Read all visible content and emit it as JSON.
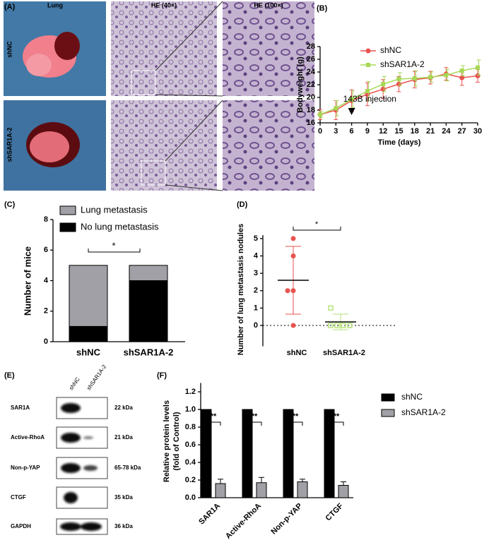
{
  "panels": {
    "a": "(A)",
    "b": "(B)",
    "c": "(C)",
    "d": "(D)",
    "e": "(E)",
    "f": "(F)"
  },
  "panel_a": {
    "column_headers": [
      "Lung",
      "HE (40×)",
      "HE (100×)"
    ],
    "row_labels": [
      "shNC",
      "shSAR1A-2"
    ]
  },
  "panel_e": {
    "column_labels": [
      "shNC",
      "shSAR1A-2"
    ],
    "rows": [
      {
        "protein": "SAR1A",
        "size": "22 kDa"
      },
      {
        "protein": "Active-RhoA",
        "size": "21 kDa"
      },
      {
        "protein": "Non-p-YAP",
        "size": "65-78 kDa"
      },
      {
        "protein": "CTGF",
        "size": "35 kDa"
      },
      {
        "protein": "GAPDH",
        "size": "36 kDa"
      }
    ]
  },
  "chart_data": [
    {
      "type": "line",
      "x": [
        0,
        3,
        6,
        9,
        12,
        15,
        18,
        21,
        24,
        27,
        30
      ],
      "xlim": [
        0,
        30
      ],
      "xticks": [
        0,
        3,
        6,
        9,
        12,
        15,
        18,
        21,
        24,
        27,
        30
      ],
      "ylim": [
        16,
        28
      ],
      "yticks": [
        16,
        18,
        20,
        22,
        24,
        26,
        28
      ],
      "xlabel": "Time (days)",
      "ylabel": "Bodyweight (g)",
      "annotation": {
        "text": "143B injection",
        "x": 6
      },
      "legend_position": "upper left",
      "series": [
        {
          "name": "shNC",
          "color": "#e8534f",
          "values": [
            17.3,
            18.0,
            19.5,
            20.5,
            21.3,
            22.1,
            22.8,
            23.1,
            23.7,
            23.1,
            23.4
          ],
          "errors": [
            0.8,
            1.5,
            1.7,
            1.8,
            1.5,
            1.2,
            1.3,
            1.0,
            1.0,
            1.2,
            1.0
          ]
        },
        {
          "name": "shSAR1A-2",
          "color": "#a6d854",
          "values": [
            17.3,
            18.3,
            19.7,
            21.0,
            22.1,
            22.9,
            23.0,
            23.2,
            23.5,
            24.2,
            24.7
          ],
          "errors": [
            0.5,
            1.2,
            1.3,
            1.5,
            1.2,
            1.0,
            1.2,
            0.8,
            0.9,
            0.8,
            1.2
          ]
        }
      ]
    },
    {
      "type": "stacked_bar",
      "categories": [
        "shNC",
        "shSAR1A-2"
      ],
      "ylim": [
        0,
        8
      ],
      "yticks": [
        0,
        2,
        4,
        6,
        8
      ],
      "ylabel": "Number of mice",
      "significance": "*",
      "series": [
        {
          "name": "No lung metastasis",
          "color": "#000000",
          "values": [
            1,
            4
          ]
        },
        {
          "name": "Lung metastasis",
          "color": "#a0a0a6",
          "values": [
            4,
            1
          ]
        }
      ]
    },
    {
      "type": "dot_plot",
      "categories": [
        "shNC",
        "shSAR1A-2"
      ],
      "ylim": [
        -1.2,
        5.2
      ],
      "yticks": [
        0,
        1,
        2,
        3,
        4,
        5
      ],
      "ylabel": "Number of lung metastasis nodules",
      "reference_line": 0,
      "significance": "*",
      "groups": [
        {
          "color": "#e8534f",
          "values": [
            5,
            4,
            2,
            2,
            0
          ],
          "mean": 2.6,
          "sd": 1.95
        },
        {
          "color": "#b7e27a",
          "values": [
            1,
            0,
            0,
            0,
            0
          ],
          "mean": 0.2,
          "sd": 0.45
        }
      ]
    },
    {
      "type": "grouped_bar",
      "categories": [
        "SAR1A",
        "Active-RhoA",
        "Non-p-YAP",
        "CTGF"
      ],
      "ylim": [
        0,
        1.3
      ],
      "yticks": [
        {
          "value": 0,
          "label": "0.0"
        },
        0.2,
        0.4,
        0.6,
        0.8,
        {
          "value": 1,
          "label": "1.0"
        },
        1.2
      ],
      "ylabel": [
        "Relative protein levels",
        "(fold of Control)"
      ],
      "significance": [
        "**",
        "**",
        "**",
        "**"
      ],
      "series": [
        {
          "name": "shNC",
          "color": "#000000",
          "values": [
            1,
            1,
            1,
            1
          ]
        },
        {
          "name": "shSAR1A-2",
          "color": "#a0a0a6",
          "values": [
            0.16,
            0.17,
            0.18,
            0.14
          ],
          "errors": [
            0.05,
            0.06,
            0.03,
            0.04
          ]
        }
      ]
    }
  ]
}
